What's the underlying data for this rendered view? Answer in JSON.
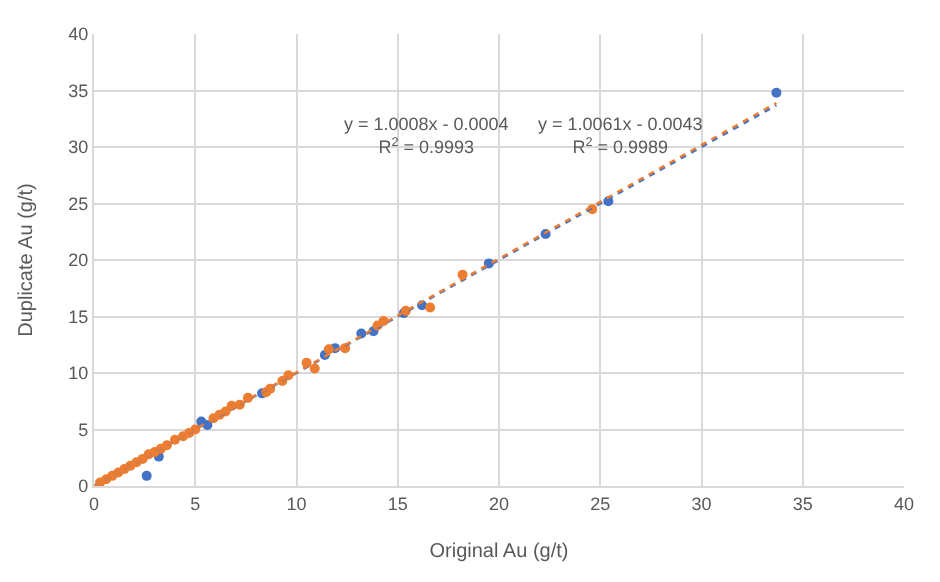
{
  "chart_data": {
    "type": "scatter",
    "xlabel": "Original Au (g/t)",
    "ylabel": "Duplicate Au (g/t)",
    "xlim": [
      0,
      40
    ],
    "ylim": [
      0,
      40
    ],
    "xticks": [
      0,
      5,
      10,
      15,
      20,
      25,
      30,
      35,
      40
    ],
    "yticks": [
      0,
      5,
      10,
      15,
      20,
      25,
      30,
      35,
      40
    ],
    "grid": true,
    "marker": "circle",
    "series": [
      {
        "color": "#4472c4",
        "x": [
          33.7,
          25.4,
          22.3,
          19.5,
          16.2,
          15.3,
          13.8,
          13.2,
          11.9,
          11.4,
          8.3,
          5.6,
          5.3,
          3.2,
          2.6
        ],
        "values": [
          34.8,
          25.2,
          22.3,
          19.7,
          16.0,
          15.3,
          13.7,
          13.5,
          12.2,
          11.6,
          8.2,
          5.4,
          5.7,
          2.6,
          0.9
        ]
      },
      {
        "color": "#ed7d31",
        "x": [
          24.6,
          18.2,
          16.6,
          15.4,
          14.3,
          14,
          12.4,
          11.6,
          10.9,
          10.5,
          9.6,
          9.3,
          8.7,
          8.5,
          7.6,
          7.2,
          6.8,
          6.5,
          6.2,
          5.9,
          5.0,
          4.7,
          4.4,
          4.0,
          3.6,
          3.3,
          3.0,
          2.7,
          2.4,
          2.1,
          1.8,
          1.5,
          1.2,
          0.9,
          0.6,
          0.3
        ],
        "values": [
          24.5,
          18.7,
          15.8,
          15.5,
          14.6,
          14.2,
          12.2,
          12.1,
          10.4,
          10.9,
          9.8,
          9.3,
          8.6,
          8.3,
          7.8,
          7.2,
          7.1,
          6.6,
          6.3,
          6.0,
          5.0,
          4.7,
          4.4,
          4.1,
          3.6,
          3.3,
          3.0,
          2.8,
          2.4,
          2.1,
          1.8,
          1.5,
          1.2,
          0.9,
          0.6,
          0.3
        ]
      },
      {
        "type": "line",
        "color": "#4472c4",
        "line_style": "dotted",
        "marker": "none",
        "x": [
          0,
          33.7
        ],
        "values": [
          0,
          33.7
        ]
      },
      {
        "type": "line",
        "color": "#ed7d31",
        "line_style": "dotted",
        "marker": "none",
        "x": [
          0,
          33.7
        ],
        "values": [
          0,
          33.9
        ]
      }
    ],
    "annotations": [
      "y = 1.0008x - 0.0004\nR$^{2}$ = 0.9993",
      "y = 1.0061x - 0.0043\nR$^{2}$ = 0.9989"
    ]
  }
}
